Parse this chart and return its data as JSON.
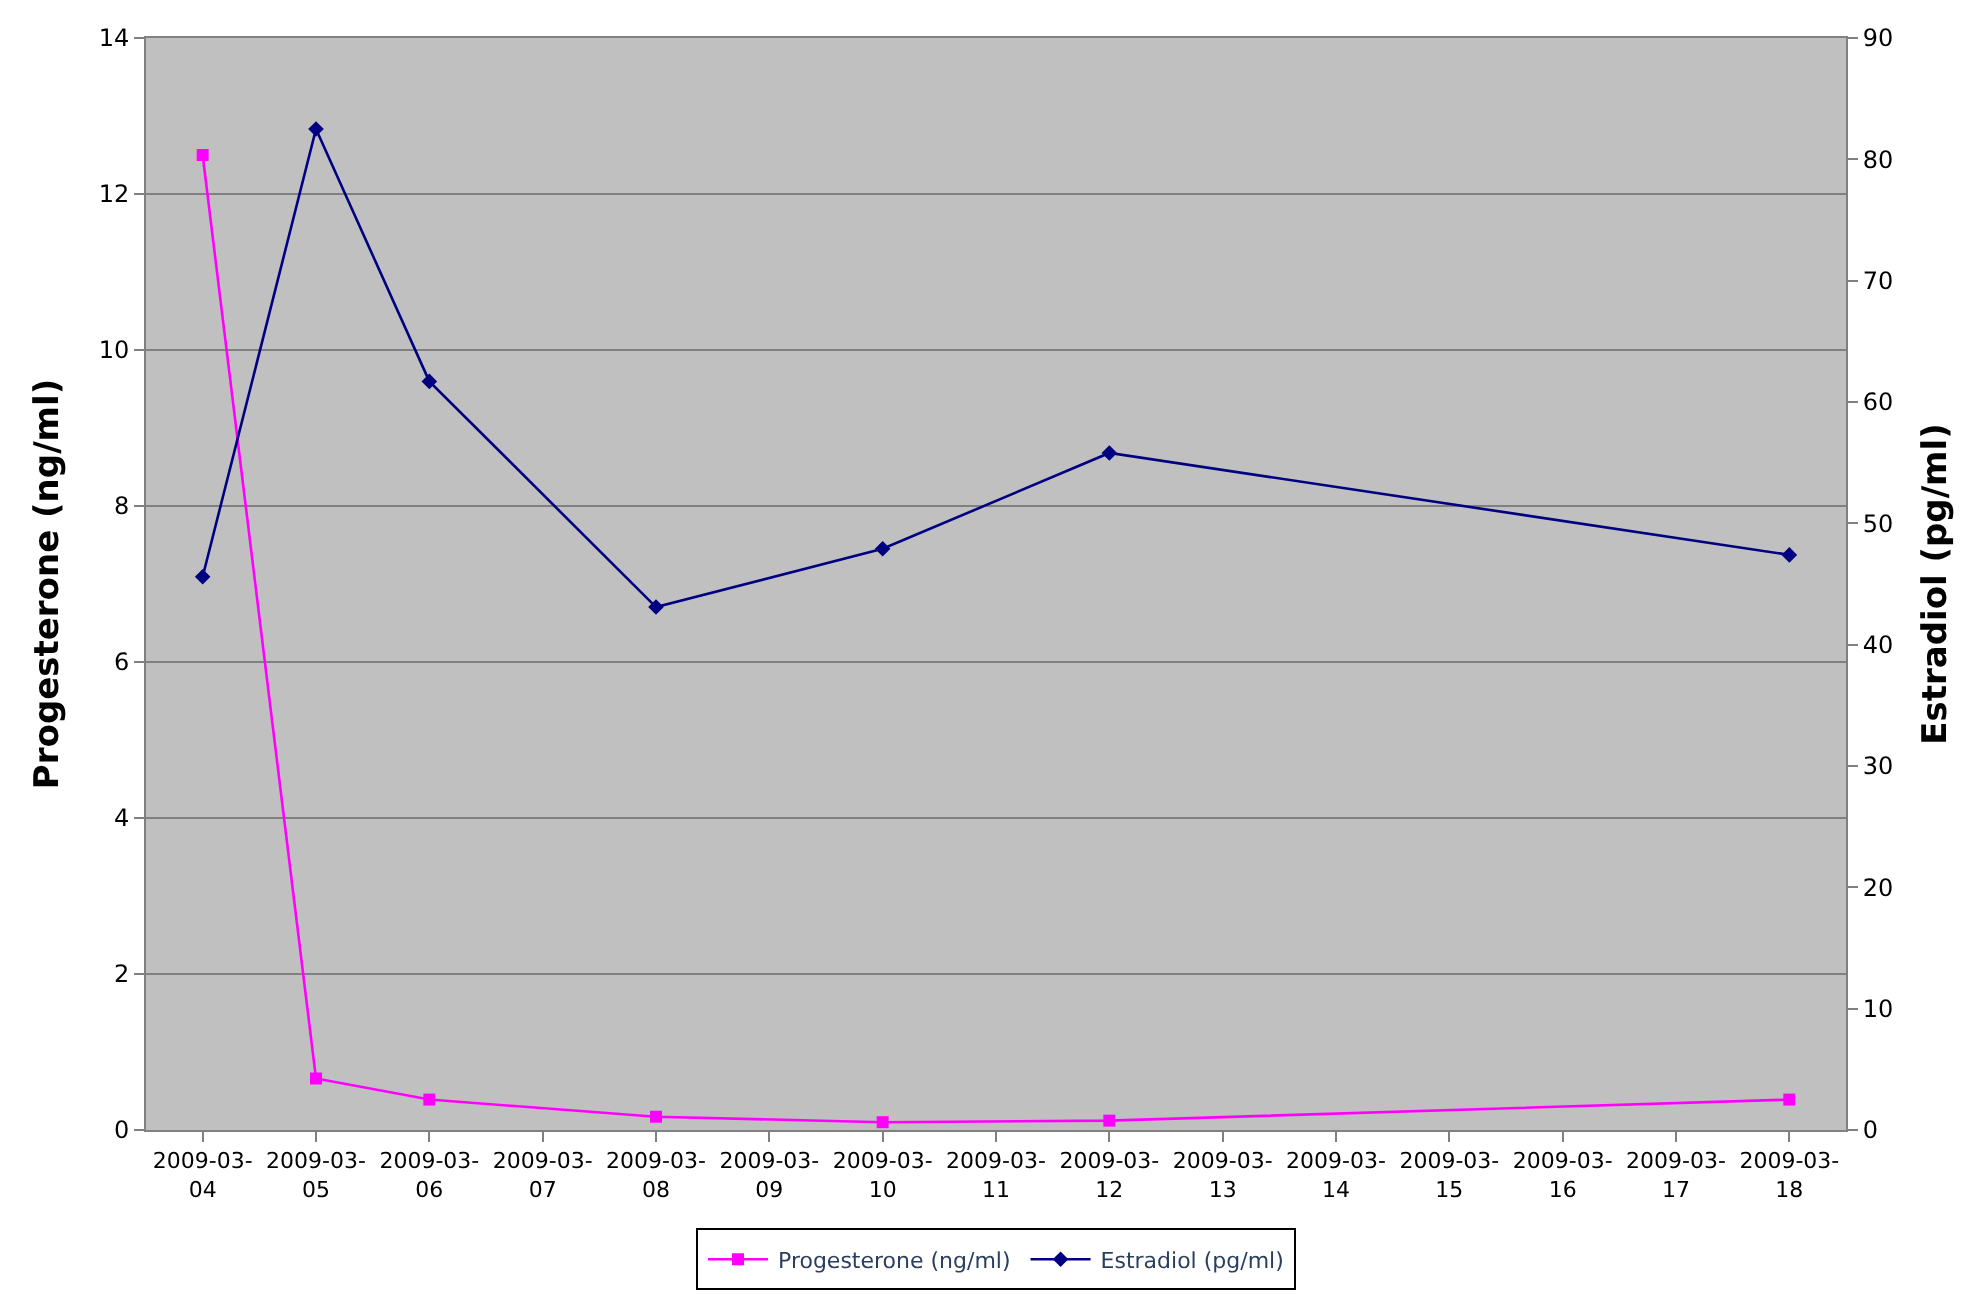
{
  "chart_data": {
    "type": "line",
    "ylabel": "Progesterone (ng/ml)",
    "y2label": "Estradiol (pg/ml)",
    "categories": [
      "2009-03-04",
      "2009-03-05",
      "2009-03-06",
      "2009-03-07",
      "2009-03-08",
      "2009-03-09",
      "2009-03-10",
      "2009-03-11",
      "2009-03-12",
      "2009-03-13",
      "2009-03-14",
      "2009-03-15",
      "2009-03-16",
      "2009-03-17",
      "2009-03-18"
    ],
    "series": [
      {
        "name": "Progesterone (ng/ml)",
        "color": "#ff00ff",
        "marker": "square",
        "values": [
          12.5,
          0.66,
          0.39,
          null,
          0.17,
          null,
          0.1,
          null,
          0.12,
          null,
          null,
          null,
          null,
          null,
          0.39
        ]
      },
      {
        "name": "Estradiol (pg/ml)",
        "color": "#000080",
        "marker": "diamond",
        "axis": "y2",
        "values": [
          45.6,
          82.5,
          61.7,
          null,
          43.1,
          null,
          47.9,
          null,
          55.8,
          null,
          null,
          null,
          null,
          null,
          47.4
        ]
      }
    ],
    "ylim": [
      0,
      14
    ],
    "yticks": [
      0,
      2,
      4,
      6,
      8,
      10,
      12,
      14
    ],
    "y2lim": [
      0,
      90
    ],
    "y2ticks": [
      0,
      10,
      20,
      30,
      40,
      50,
      60,
      70,
      80,
      90
    ],
    "grid": "y",
    "legend": "bottom",
    "line_style": "solid"
  }
}
